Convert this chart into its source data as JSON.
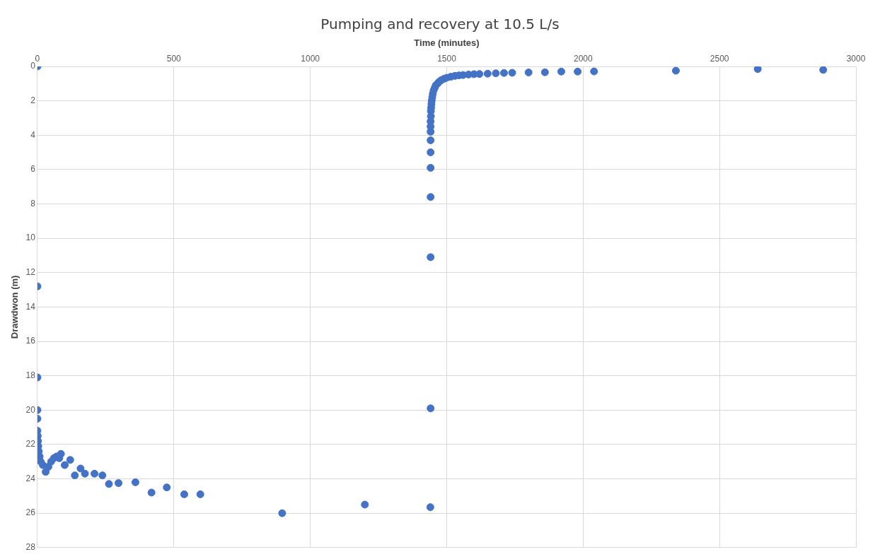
{
  "chart_data": {
    "type": "scatter",
    "title": "Pumping and recovery at 10.5 L/s",
    "xlabel": "Time (minutes)",
    "ylabel": "Drawdwon (m)",
    "xlim": [
      0,
      3000
    ],
    "xticks": [
      0,
      500,
      1000,
      1500,
      2000,
      2500,
      3000
    ],
    "ylim": [
      28,
      0
    ],
    "yticks": [
      0,
      2,
      4,
      6,
      8,
      10,
      12,
      14,
      16,
      18,
      20,
      22,
      24,
      26,
      28
    ],
    "grid": true,
    "legend": false,
    "marker": "circle",
    "series": [
      {
        "color": "#4472c4",
        "x": [
          0,
          0,
          0,
          0,
          0,
          0,
          1,
          2,
          3,
          5,
          8,
          12,
          20,
          30,
          40,
          50,
          60,
          70,
          80,
          86,
          100,
          120,
          137,
          158,
          174,
          209,
          238,
          262,
          297,
          359,
          418,
          474,
          538,
          597,
          897,
          1200,
          1440,
          1441,
          1441,
          1441,
          1441,
          1441,
          1441,
          1441,
          1441,
          1441,
          1442,
          1442,
          1443,
          1444,
          1445,
          1447,
          1449,
          1452,
          1456,
          1460,
          1466,
          1472,
          1480,
          1490,
          1500,
          1515,
          1530,
          1545,
          1560,
          1580,
          1600,
          1620,
          1650,
          1680,
          1710,
          1740,
          1800,
          1860,
          1920,
          1980,
          2040,
          2340,
          2640,
          2880
        ],
        "values": [
          0,
          12.8,
          18.1,
          20.0,
          20.5,
          21.2,
          21.5,
          21.8,
          22.1,
          22.4,
          22.7,
          23.0,
          23.2,
          23.6,
          23.3,
          23.0,
          22.8,
          22.7,
          22.8,
          22.55,
          23.2,
          22.9,
          23.8,
          23.4,
          23.7,
          23.7,
          23.8,
          24.3,
          24.25,
          24.2,
          24.8,
          24.5,
          24.9,
          24.9,
          26.0,
          25.5,
          25.65,
          19.9,
          11.1,
          7.6,
          5.9,
          5.0,
          4.3,
          3.8,
          3.5,
          3.2,
          2.9,
          2.6,
          2.4,
          2.2,
          2.0,
          1.8,
          1.6,
          1.4,
          1.25,
          1.1,
          1.0,
          0.9,
          0.8,
          0.72,
          0.66,
          0.6,
          0.55,
          0.52,
          0.5,
          0.47,
          0.45,
          0.44,
          0.42,
          0.4,
          0.38,
          0.37,
          0.35,
          0.34,
          0.3,
          0.3,
          0.29,
          0.25,
          0.15,
          0.2
        ]
      }
    ]
  }
}
